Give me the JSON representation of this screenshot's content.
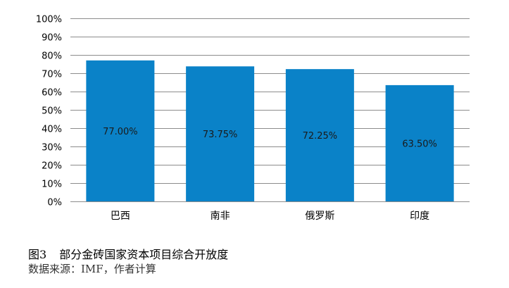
{
  "chart_data": {
    "type": "bar",
    "categories": [
      "巴西",
      "南非",
      "俄罗斯",
      "印度"
    ],
    "values": [
      77.0,
      73.75,
      72.25,
      63.5
    ],
    "data_labels": [
      "77.00%",
      "73.75%",
      "72.25%",
      "63.50%"
    ],
    "yticks": [
      "0%",
      "10%",
      "20%",
      "30%",
      "40%",
      "50%",
      "60%",
      "70%",
      "80%",
      "90%",
      "100%"
    ],
    "ylim": [
      0,
      100
    ],
    "grid": true,
    "legend": "none",
    "bar_color": "#0A82C8",
    "grid_color": "#8C8C8C"
  },
  "caption": {
    "figure_no": "图3",
    "title": "部分金砖国家资本项目综合开放度",
    "source": "数据来源：IMF，作者计算"
  }
}
